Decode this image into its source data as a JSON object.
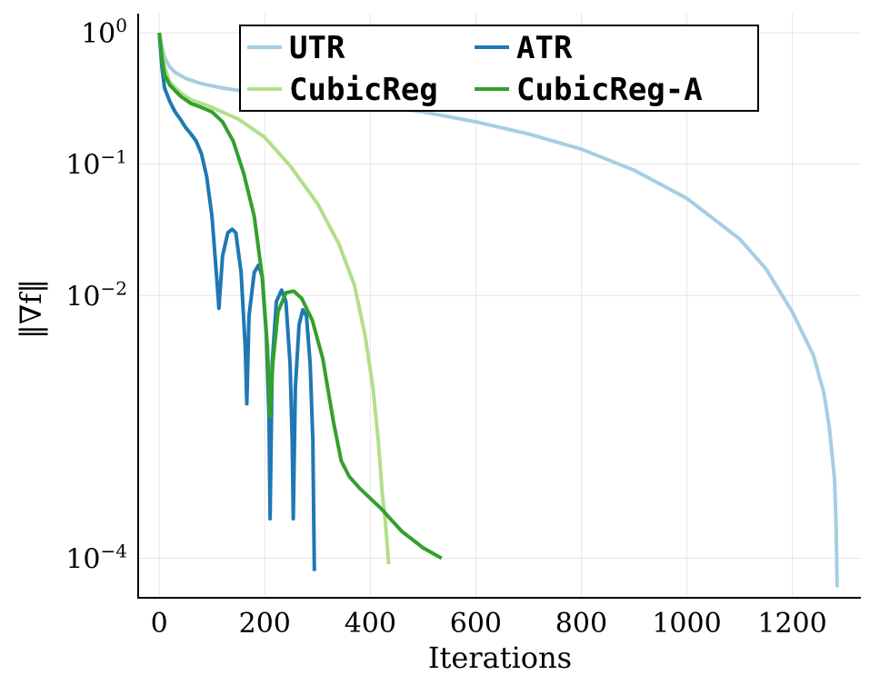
{
  "chart_data": {
    "type": "line",
    "xlabel": "Iterations",
    "ylabel": "‖∇f‖",
    "yscale": "log",
    "xlim": [
      -40,
      1330
    ],
    "ylim": [
      5e-05,
      1.4
    ],
    "grid": true,
    "legend_position": "top",
    "x_ticks": [
      0,
      200,
      400,
      600,
      800,
      1000,
      1200
    ],
    "x_tick_labels": [
      "0",
      "200",
      "400",
      "600",
      "800",
      "1000",
      "1200"
    ],
    "y_ticks": [
      {
        "value": 1,
        "base": "10",
        "exp": "0"
      },
      {
        "value": 0.1,
        "base": "10",
        "exp": "−1"
      },
      {
        "value": 0.01,
        "base": "10",
        "exp": "−2"
      },
      {
        "value": 0.0001,
        "base": "10",
        "exp": "−4"
      }
    ],
    "series": [
      {
        "name": "UTR",
        "color": "#a6cee3",
        "points": [
          [
            0,
            1.0
          ],
          [
            5,
            0.8
          ],
          [
            10,
            0.65
          ],
          [
            20,
            0.55
          ],
          [
            30,
            0.5
          ],
          [
            50,
            0.45
          ],
          [
            80,
            0.41
          ],
          [
            120,
            0.38
          ],
          [
            200,
            0.34
          ],
          [
            300,
            0.31
          ],
          [
            400,
            0.28
          ],
          [
            500,
            0.25
          ],
          [
            600,
            0.21
          ],
          [
            700,
            0.17
          ],
          [
            800,
            0.13
          ],
          [
            900,
            0.09
          ],
          [
            1000,
            0.055
          ],
          [
            1100,
            0.027
          ],
          [
            1150,
            0.016
          ],
          [
            1200,
            0.0075
          ],
          [
            1240,
            0.0035
          ],
          [
            1260,
            0.0018
          ],
          [
            1270,
            0.001
          ],
          [
            1280,
            0.0004
          ],
          [
            1283,
            0.00018
          ],
          [
            1285,
            6e-05
          ]
        ]
      },
      {
        "name": "ATR",
        "color": "#1f78b4",
        "points": [
          [
            0,
            1.0
          ],
          [
            5,
            0.55
          ],
          [
            10,
            0.38
          ],
          [
            20,
            0.3
          ],
          [
            30,
            0.25
          ],
          [
            40,
            0.22
          ],
          [
            50,
            0.19
          ],
          [
            60,
            0.17
          ],
          [
            70,
            0.15
          ],
          [
            80,
            0.12
          ],
          [
            90,
            0.08
          ],
          [
            100,
            0.04
          ],
          [
            110,
            0.012
          ],
          [
            113,
            0.008
          ],
          [
            120,
            0.02
          ],
          [
            130,
            0.03
          ],
          [
            138,
            0.032
          ],
          [
            145,
            0.03
          ],
          [
            155,
            0.015
          ],
          [
            163,
            0.004
          ],
          [
            166,
            0.0015
          ],
          [
            170,
            0.007
          ],
          [
            180,
            0.015
          ],
          [
            188,
            0.017
          ],
          [
            195,
            0.014
          ],
          [
            203,
            0.005
          ],
          [
            208,
            0.0012
          ],
          [
            210,
            0.0002
          ],
          [
            214,
            0.003
          ],
          [
            222,
            0.009
          ],
          [
            232,
            0.011
          ],
          [
            240,
            0.009
          ],
          [
            248,
            0.003
          ],
          [
            252,
            0.0008
          ],
          [
            254,
            0.0002
          ],
          [
            258,
            0.002
          ],
          [
            265,
            0.006
          ],
          [
            272,
            0.0078
          ],
          [
            279,
            0.007
          ],
          [
            286,
            0.003
          ],
          [
            291,
            0.0008
          ],
          [
            294,
            8e-05
          ]
        ]
      },
      {
        "name": "CubicReg",
        "color": "#b2df8a",
        "points": [
          [
            0,
            1.0
          ],
          [
            5,
            0.7
          ],
          [
            10,
            0.55
          ],
          [
            20,
            0.42
          ],
          [
            40,
            0.35
          ],
          [
            60,
            0.31
          ],
          [
            100,
            0.27
          ],
          [
            150,
            0.22
          ],
          [
            200,
            0.16
          ],
          [
            250,
            0.095
          ],
          [
            300,
            0.05
          ],
          [
            340,
            0.025
          ],
          [
            370,
            0.012
          ],
          [
            390,
            0.005
          ],
          [
            405,
            0.002
          ],
          [
            415,
            0.0008
          ],
          [
            423,
            0.0003
          ],
          [
            428,
            0.0002
          ],
          [
            435,
            9e-05
          ]
        ]
      },
      {
        "name": "CubicReg-A",
        "color": "#33a02c",
        "points": [
          [
            0,
            1.0
          ],
          [
            5,
            0.65
          ],
          [
            10,
            0.48
          ],
          [
            20,
            0.4
          ],
          [
            40,
            0.33
          ],
          [
            60,
            0.29
          ],
          [
            80,
            0.27
          ],
          [
            100,
            0.25
          ],
          [
            120,
            0.21
          ],
          [
            140,
            0.15
          ],
          [
            160,
            0.085
          ],
          [
            180,
            0.04
          ],
          [
            195,
            0.014
          ],
          [
            205,
            0.004
          ],
          [
            210,
            0.0012
          ],
          [
            215,
            0.003
          ],
          [
            225,
            0.0075
          ],
          [
            240,
            0.0105
          ],
          [
            255,
            0.0108
          ],
          [
            270,
            0.0095
          ],
          [
            290,
            0.0065
          ],
          [
            310,
            0.0033
          ],
          [
            330,
            0.0011
          ],
          [
            345,
            0.00055
          ],
          [
            360,
            0.00042
          ],
          [
            380,
            0.00034
          ],
          [
            420,
            0.00024
          ],
          [
            460,
            0.00016
          ],
          [
            500,
            0.00012
          ],
          [
            535,
            0.0001
          ]
        ]
      }
    ]
  }
}
